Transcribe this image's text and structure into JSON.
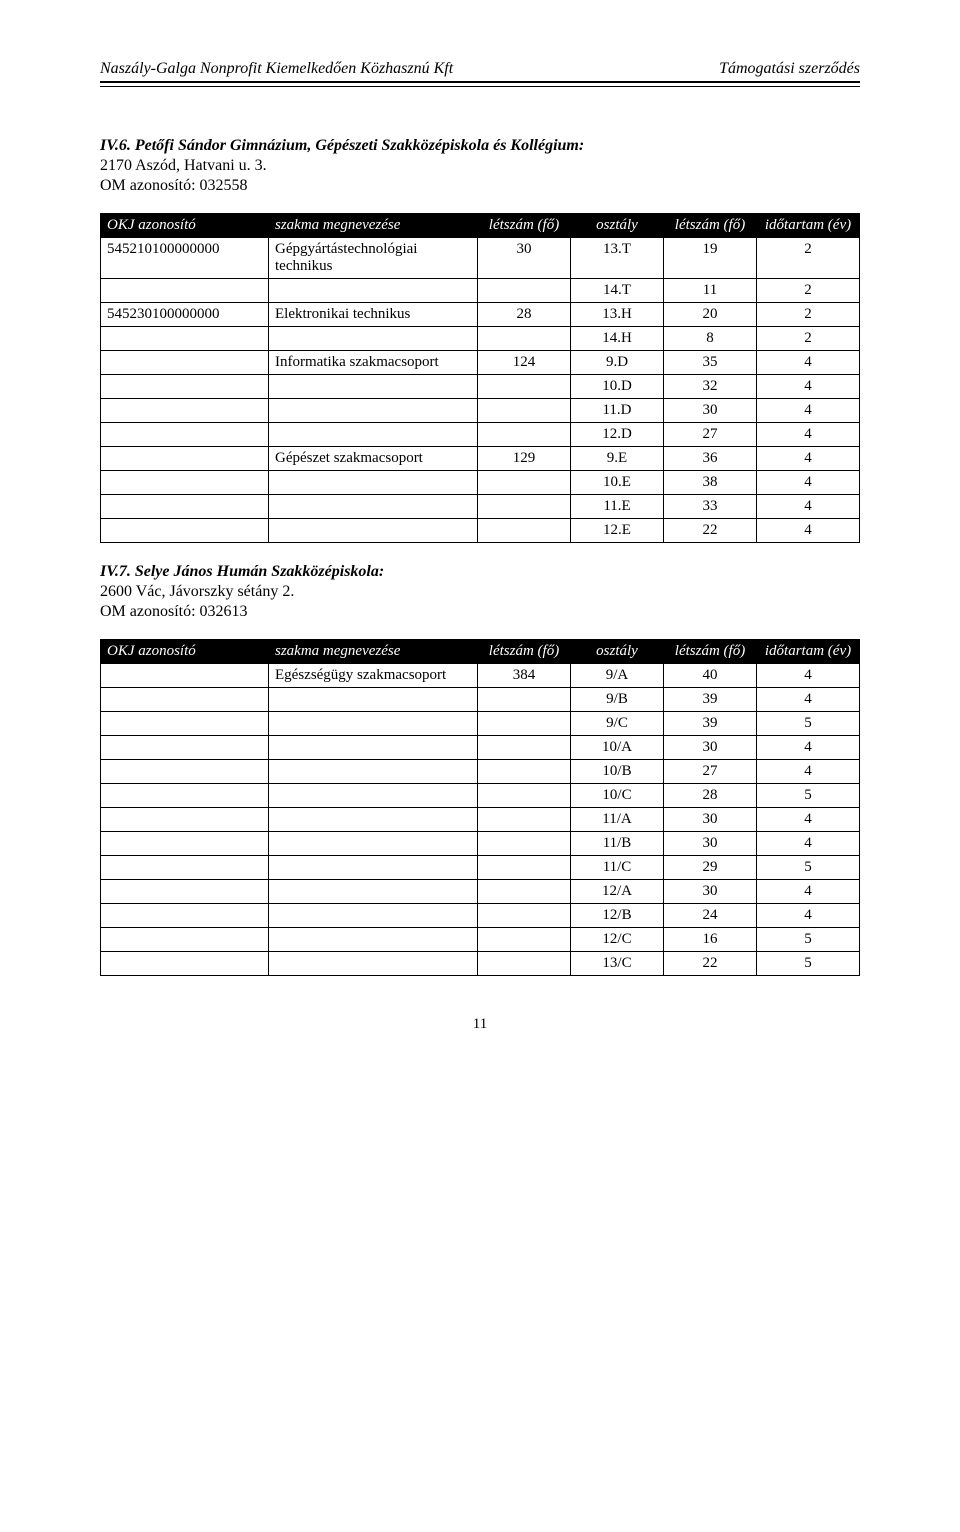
{
  "header": {
    "left": "Naszály-Galga Nonprofit Kiemelkedően Közhasznú Kft",
    "right": "Támogatási szerződés"
  },
  "section1": {
    "number": "IV.6.",
    "title": "Petőfi Sándor Gimnázium, Gépészeti Szakközépiskola és Kollégium:",
    "address": "2170 Aszód, Hatvani u. 3.",
    "omid": "OM azonosító: 032558"
  },
  "table1": {
    "headers": {
      "okj": "OKJ azonosító",
      "name": "szakma megnevezése",
      "fo1": "létszám (fő)",
      "osz": "osztály",
      "fo2": "létszám (fő)",
      "ev": "időtartam (év)"
    },
    "rows": [
      {
        "okj": "545210100000000",
        "name": "Gépgyártástechnológiai technikus",
        "fo1": "30",
        "osz": "13.T",
        "fo2": "19",
        "ev": "2"
      },
      {
        "okj": "",
        "name": "",
        "fo1": "",
        "osz": "14.T",
        "fo2": "11",
        "ev": "2"
      },
      {
        "okj": "545230100000000",
        "name": "Elektronikai technikus",
        "fo1": "28",
        "osz": "13.H",
        "fo2": "20",
        "ev": "2"
      },
      {
        "okj": "",
        "name": "",
        "fo1": "",
        "osz": "14.H",
        "fo2": "8",
        "ev": "2"
      },
      {
        "okj": "",
        "name": "Informatika szakmacsoport",
        "fo1": "124",
        "osz": "9.D",
        "fo2": "35",
        "ev": "4"
      },
      {
        "okj": "",
        "name": "",
        "fo1": "",
        "osz": "10.D",
        "fo2": "32",
        "ev": "4"
      },
      {
        "okj": "",
        "name": "",
        "fo1": "",
        "osz": "11.D",
        "fo2": "30",
        "ev": "4"
      },
      {
        "okj": "",
        "name": "",
        "fo1": "",
        "osz": "12.D",
        "fo2": "27",
        "ev": "4"
      },
      {
        "okj": "",
        "name": "Gépészet szakmacsoport",
        "fo1": "129",
        "osz": "9.E",
        "fo2": "36",
        "ev": "4"
      },
      {
        "okj": "",
        "name": "",
        "fo1": "",
        "osz": "10.E",
        "fo2": "38",
        "ev": "4"
      },
      {
        "okj": "",
        "name": "",
        "fo1": "",
        "osz": "11.E",
        "fo2": "33",
        "ev": "4"
      },
      {
        "okj": "",
        "name": "",
        "fo1": "",
        "osz": "12.E",
        "fo2": "22",
        "ev": "4"
      }
    ]
  },
  "section2": {
    "number": "IV.7.",
    "title": "Selye János Humán Szakközépiskola:",
    "address": "2600 Vác, Jávorszky sétány 2.",
    "omid": "OM azonosító: 032613"
  },
  "table2": {
    "headers": {
      "okj": "OKJ azonosító",
      "name": "szakma megnevezése",
      "fo1": "létszám (fő)",
      "osz": "osztály",
      "fo2": "létszám (fő)",
      "ev": "időtartam (év)"
    },
    "rows": [
      {
        "okj": "",
        "name": "Egészségügy szakmacsoport",
        "fo1": "384",
        "osz": "9/A",
        "fo2": "40",
        "ev": "4"
      },
      {
        "okj": "",
        "name": "",
        "fo1": "",
        "osz": "9/B",
        "fo2": "39",
        "ev": "4"
      },
      {
        "okj": "",
        "name": "",
        "fo1": "",
        "osz": "9/C",
        "fo2": "39",
        "ev": "5"
      },
      {
        "okj": "",
        "name": "",
        "fo1": "",
        "osz": "10/A",
        "fo2": "30",
        "ev": "4"
      },
      {
        "okj": "",
        "name": "",
        "fo1": "",
        "osz": "10/B",
        "fo2": "27",
        "ev": "4"
      },
      {
        "okj": "",
        "name": "",
        "fo1": "",
        "osz": "10/C",
        "fo2": "28",
        "ev": "5"
      },
      {
        "okj": "",
        "name": "",
        "fo1": "",
        "osz": "11/A",
        "fo2": "30",
        "ev": "4"
      },
      {
        "okj": "",
        "name": "",
        "fo1": "",
        "osz": "11/B",
        "fo2": "30",
        "ev": "4"
      },
      {
        "okj": "",
        "name": "",
        "fo1": "",
        "osz": "11/C",
        "fo2": "29",
        "ev": "5"
      },
      {
        "okj": "",
        "name": "",
        "fo1": "",
        "osz": "12/A",
        "fo2": "30",
        "ev": "4"
      },
      {
        "okj": "",
        "name": "",
        "fo1": "",
        "osz": "12/B",
        "fo2": "24",
        "ev": "4"
      },
      {
        "okj": "",
        "name": "",
        "fo1": "",
        "osz": "12/C",
        "fo2": "16",
        "ev": "5"
      },
      {
        "okj": "",
        "name": "",
        "fo1": "",
        "osz": "13/C",
        "fo2": "22",
        "ev": "5"
      }
    ]
  },
  "pagenum": "11"
}
